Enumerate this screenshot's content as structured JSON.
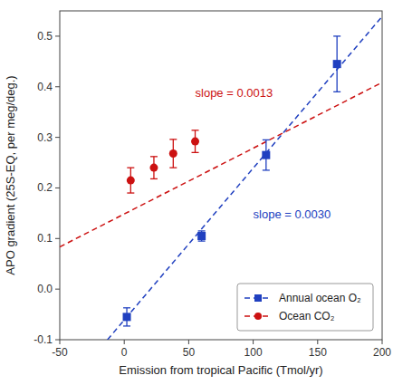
{
  "chart_data": {
    "type": "scatter",
    "xlabel": "Emission from tropical Pacific (Tmol/yr)",
    "ylabel": "APO gradient (25S-EQ, per meg/deg.)",
    "xlim": [
      -50,
      200
    ],
    "ylim": [
      -0.1,
      0.55
    ],
    "xticks": [
      -50,
      0,
      50,
      100,
      150,
      200
    ],
    "yticks": [
      -0.1,
      {
        "value": 0.0,
        "label": "0.0"
      },
      0.1,
      0.2,
      0.3,
      0.4,
      0.5
    ],
    "grid": false,
    "legend": "lower right",
    "series": [
      {
        "name": "Annual ocean O₂",
        "type": "scatter",
        "marker": "square",
        "color": "#2040c0",
        "x": [
          2,
          60,
          110,
          165
        ],
        "values": [
          -0.055,
          0.105,
          0.265,
          0.445
        ],
        "errors": [
          0.018,
          0.01,
          0.03,
          0.055
        ]
      },
      {
        "name": "Ocean CO₂",
        "type": "scatter",
        "marker": "circle",
        "color": "#cc1111",
        "x": [
          5,
          23,
          38,
          55
        ],
        "values": [
          0.215,
          0.24,
          0.268,
          0.292
        ],
        "errors": [
          0.025,
          0.022,
          0.028,
          0.022
        ]
      },
      {
        "type": "line",
        "line_style": "dashed",
        "color": "#2040c0",
        "x": [
          -13,
          200
        ],
        "values": [
          -0.1,
          0.539
        ]
      },
      {
        "type": "line",
        "line_style": "dashed",
        "color": "#cc1111",
        "x": [
          -50,
          200
        ],
        "values": [
          0.0835,
          0.4085
        ]
      }
    ],
    "annotations": [
      {
        "text": "slope = 0.0013",
        "x": 55,
        "y": 0.375,
        "color": "#cc1111"
      },
      {
        "text": "slope = 0.0030",
        "x": 100,
        "y": 0.135,
        "color": "#2040c0"
      }
    ]
  }
}
